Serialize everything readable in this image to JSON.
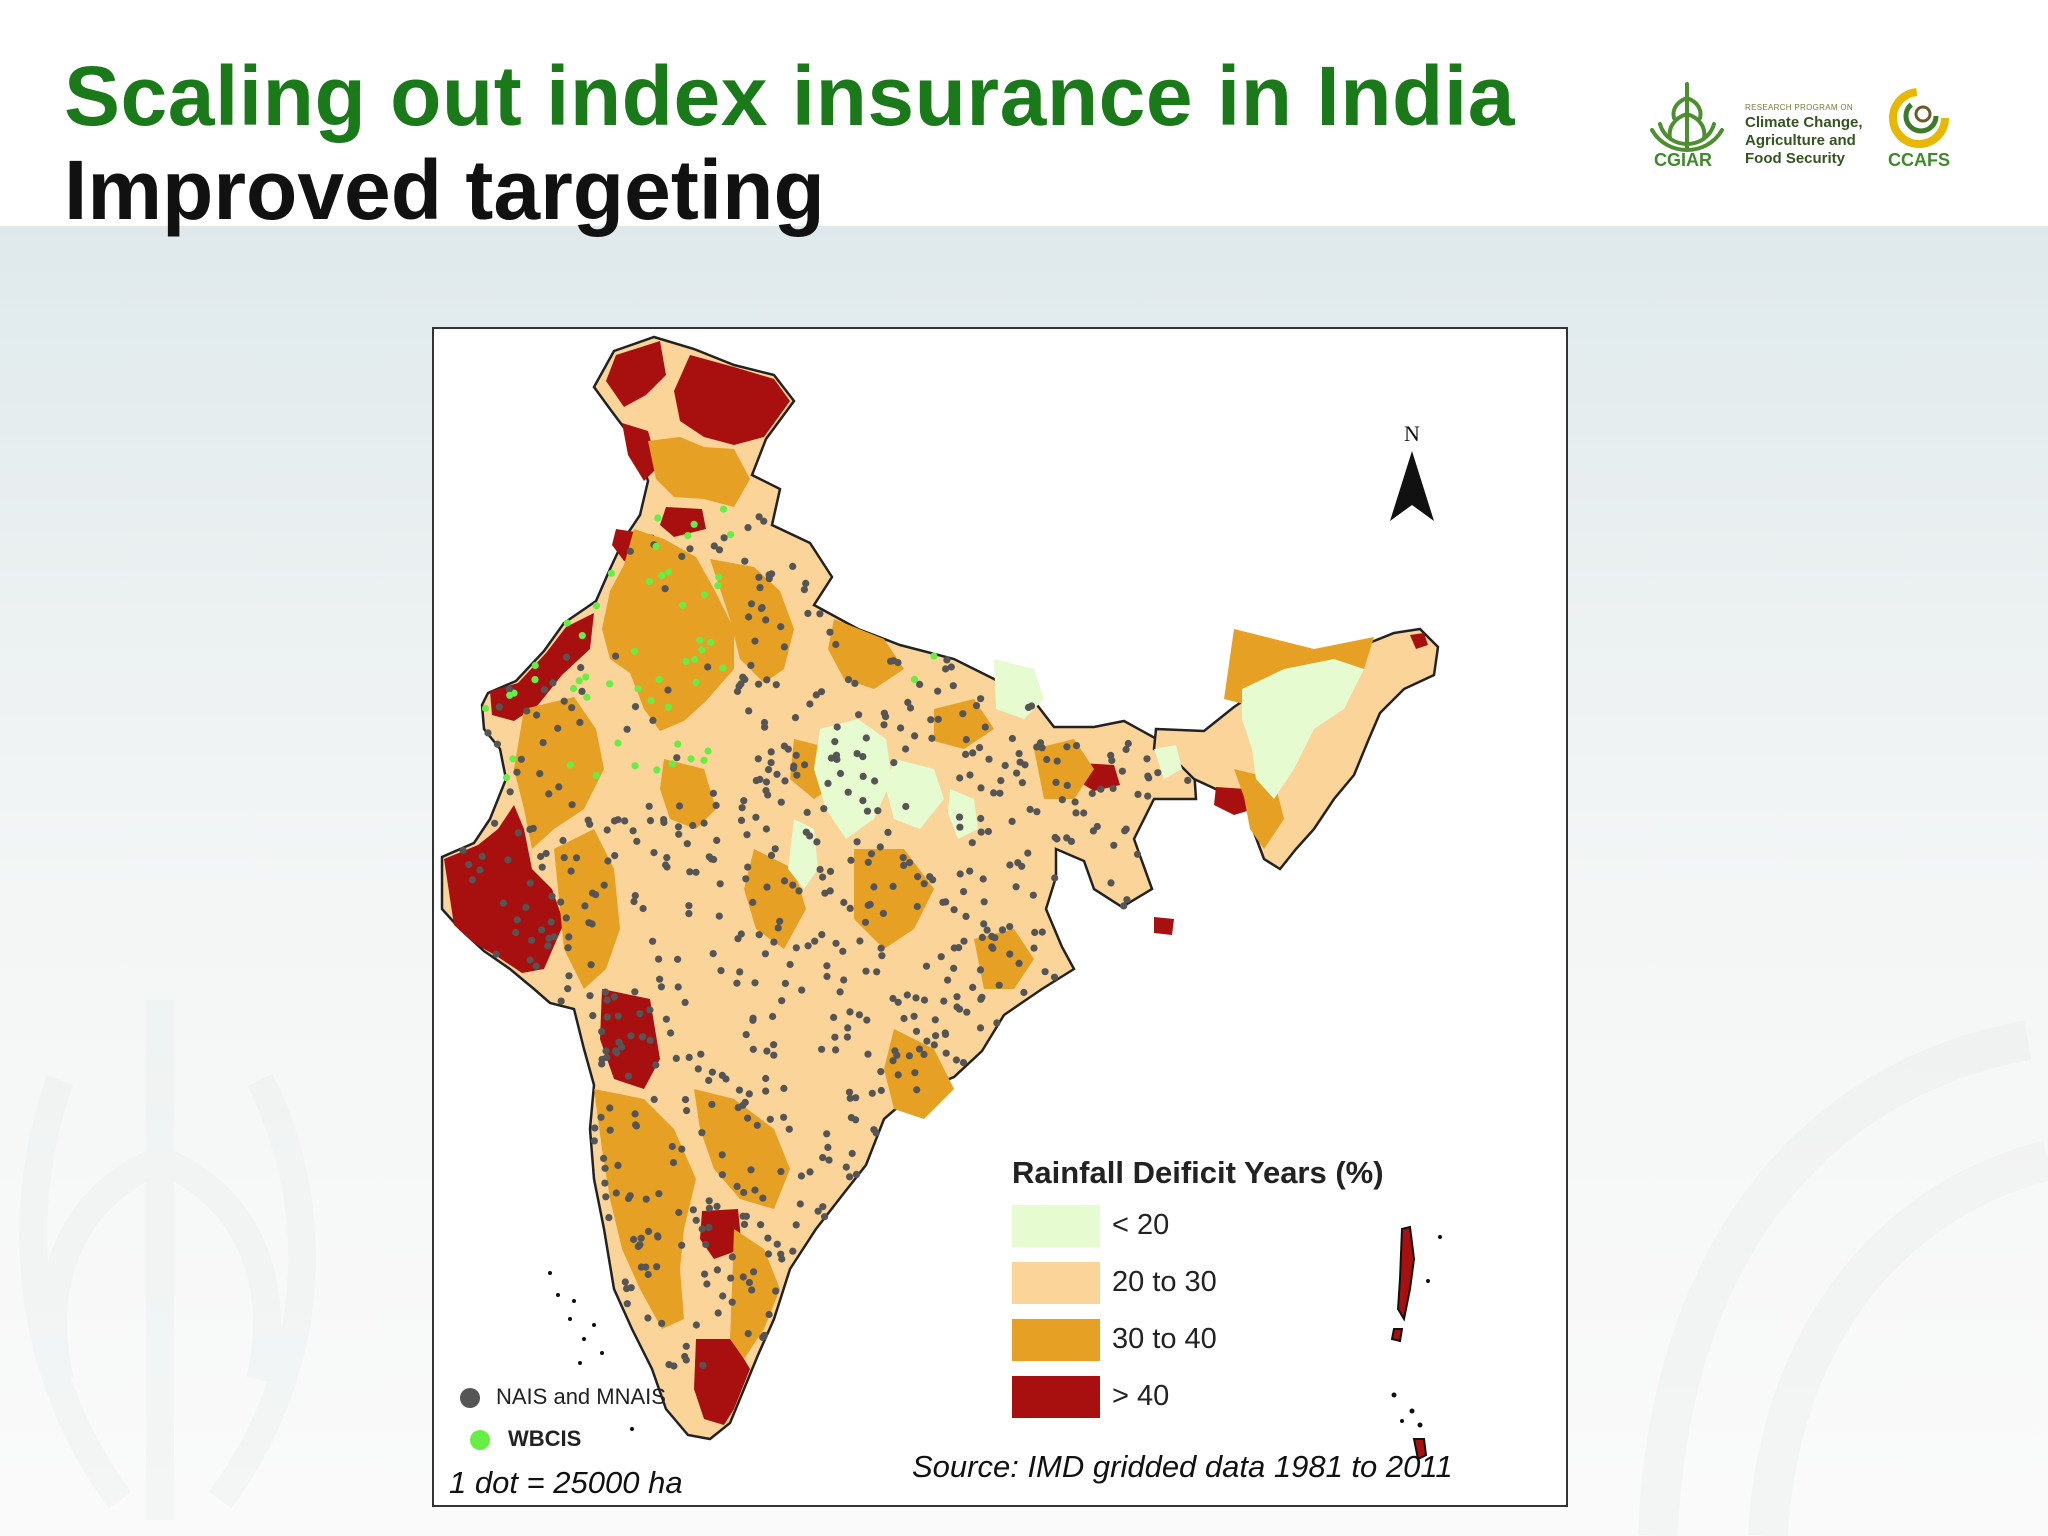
{
  "slide": {
    "title_line1": "Scaling out index insurance in India",
    "title_line2": "Improved targeting"
  },
  "logos": {
    "cgiar": "CGIAR",
    "program_small": "RESEARCH PROGRAM ON",
    "program_lines": [
      "Climate Change,",
      "Agriculture and",
      "Food Security"
    ],
    "ccafs": "CCAFS"
  },
  "map": {
    "north_label": "N",
    "legend_title": "Rainfall Deificit Years (%)",
    "legend_items": [
      {
        "label": "< 20",
        "color": "#e6fbcf"
      },
      {
        "label": "20 to 30",
        "color": "#fbd49a"
      },
      {
        "label": "30 to 40",
        "color": "#e6a024"
      },
      {
        "label": "> 40",
        "color": "#a80f0f"
      }
    ],
    "dot_legend": [
      {
        "label": "NAIS and MNAIS",
        "color": "#555555"
      },
      {
        "label": "WBCIS",
        "color": "#66ee44"
      }
    ],
    "scale_note": "1 dot = 25000 ha",
    "source": "Source: IMD gridded data 1981 to 2011"
  },
  "colors": {
    "title_green": "#1a7a1a",
    "title_black": "#111111",
    "lt20": "#e6fbcf",
    "c20to30": "#fbd49a",
    "c30to40": "#e6a024",
    "gt40": "#a80f0f"
  }
}
